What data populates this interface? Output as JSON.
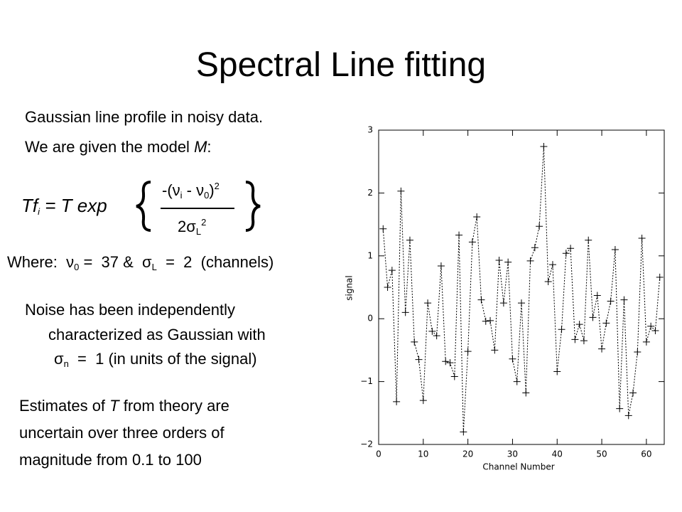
{
  "slide": {
    "title": "Spectral Line fitting",
    "intro": [
      "Gaussian line profile in noisy data.",
      "We are given the model ",
      "M",
      ":"
    ],
    "formula": {
      "lhs": [
        "Tf",
        "i",
        " = T exp"
      ],
      "numerator": [
        "-(ν",
        "i",
        " - ν",
        "0",
        ")",
        "2"
      ],
      "denominator": [
        "2σ",
        "L",
        "2"
      ]
    },
    "where": [
      "Where:  ν",
      "0",
      " =  37 &  σ",
      "L",
      "  =  2  (channels)"
    ],
    "noise": [
      "Noise has been independently",
      "characterized as Gaussian with",
      "σ",
      "n",
      "  =  1 (in units of the signal)"
    ],
    "estimates": [
      "Estimates of ",
      "T",
      " from theory are",
      "uncertain over three orders of",
      "magnitude from 0.1 to 100"
    ]
  },
  "chart_data": {
    "type": "line",
    "x_label": "Channel Number",
    "y_label": "signal",
    "x": [
      1,
      2,
      3,
      4,
      5,
      6,
      7,
      8,
      9,
      10,
      11,
      12,
      13,
      14,
      15,
      16,
      17,
      18,
      19,
      20,
      21,
      22,
      23,
      24,
      25,
      26,
      27,
      28,
      29,
      30,
      31,
      32,
      33,
      34,
      35,
      36,
      37,
      38,
      39,
      40,
      41,
      42,
      43,
      44,
      45,
      46,
      47,
      48,
      49,
      50,
      51,
      52,
      53,
      54,
      55,
      56,
      57,
      58,
      59,
      60,
      61,
      62,
      63
    ],
    "values": [
      1.43,
      0.5,
      0.77,
      -1.32,
      2.03,
      0.1,
      1.25,
      -0.37,
      -0.65,
      -1.3,
      0.25,
      -0.2,
      -0.27,
      0.84,
      -0.68,
      -0.7,
      -0.92,
      1.33,
      -1.8,
      -0.52,
      1.22,
      1.62,
      0.3,
      -0.04,
      -0.03,
      -0.5,
      0.93,
      0.25,
      0.9,
      -0.64,
      -1.0,
      0.25,
      -1.18,
      0.92,
      1.13,
      1.47,
      2.74,
      0.59,
      0.86,
      -0.84,
      -0.17,
      1.04,
      1.12,
      -0.33,
      -0.09,
      -0.35,
      1.25,
      0.02,
      0.37,
      -0.48,
      -0.07,
      0.28,
      1.1,
      -1.43,
      0.3,
      -1.54,
      -1.18,
      -0.53,
      1.28,
      -0.37,
      -0.12,
      -0.19,
      0.66
    ],
    "color": "#000000",
    "xlim": [
      0,
      64
    ],
    "xticks": [
      0,
      10,
      20,
      30,
      40,
      50,
      60
    ],
    "ylim": [
      -2,
      3
    ],
    "yticks": [
      {
        "value": -2,
        "label": "−2"
      },
      {
        "value": -1,
        "label": "−1"
      },
      0,
      1,
      2,
      3
    ]
  }
}
